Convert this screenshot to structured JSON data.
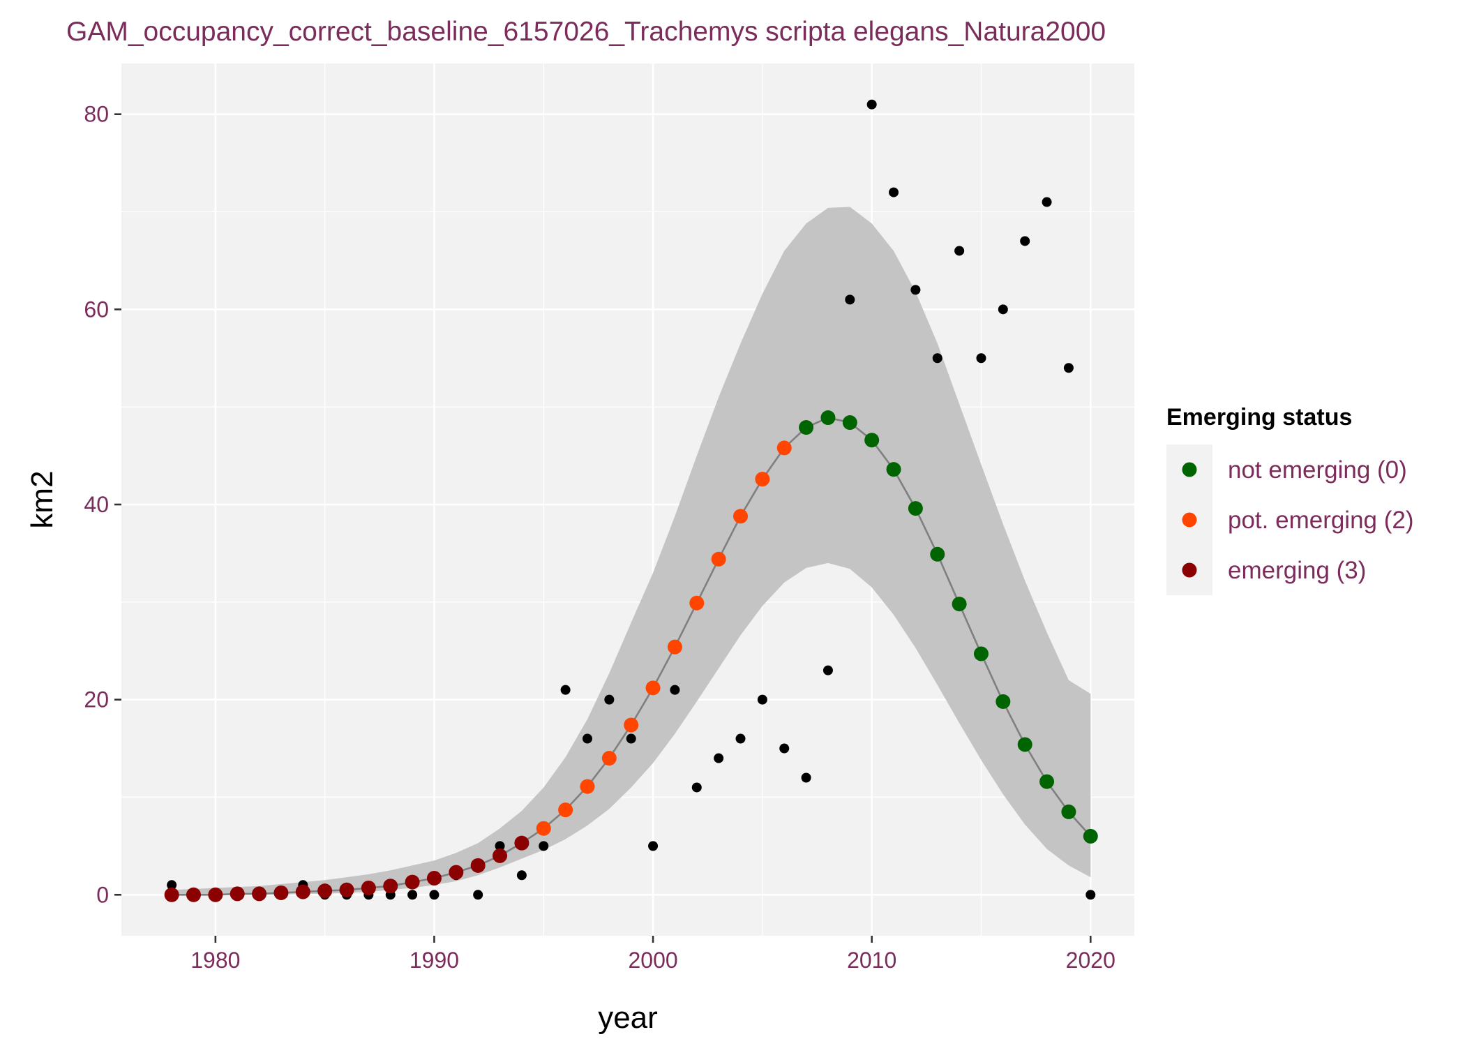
{
  "chart_data": {
    "type": "scatter",
    "title": "GAM_occupancy_correct_baseline_6157026_Trachemys scripta elegans_Natura2000",
    "xlabel": "year",
    "ylabel": "km2",
    "xlim": [
      1975.7,
      2022.0
    ],
    "ylim": [
      -4.2,
      85.2
    ],
    "x_ticks": [
      "1980",
      "1990",
      "2000",
      "2010",
      "2020"
    ],
    "y_ticks": [
      "0",
      "20",
      "40",
      "60",
      "80"
    ],
    "grid": true,
    "legend": {
      "title": "Emerging status",
      "position": "right",
      "entries": [
        {
          "label": "not emerging (0)",
          "color": "#006400"
        },
        {
          "label": "pot. emerging (2)",
          "color": "#ff4500"
        },
        {
          "label": "emerging (3)",
          "color": "#8b0000"
        }
      ]
    },
    "colors": {
      "panel": "#f2f2f2",
      "grid": "#ffffff",
      "ribbon": "#c4c4c4",
      "fit_line": "#7f7f7f",
      "observed": "#000000",
      "status_0": "#006400",
      "status_2": "#ff4500",
      "status_3": "#8b0000"
    },
    "observed": {
      "name": "observed",
      "x": [
        1978,
        1979,
        1980,
        1981,
        1982,
        1983,
        1984,
        1985,
        1986,
        1987,
        1988,
        1989,
        1990,
        1991,
        1992,
        1993,
        1994,
        1995,
        1996,
        1997,
        1998,
        1999,
        2000,
        2001,
        2002,
        2003,
        2004,
        2005,
        2006,
        2007,
        2008,
        2009,
        2010,
        2011,
        2012,
        2013,
        2014,
        2015,
        2016,
        2017,
        2018,
        2019,
        2020
      ],
      "y": [
        1,
        0,
        0,
        0,
        0,
        0,
        1,
        0,
        0,
        0,
        0,
        0,
        0,
        2,
        0,
        5,
        2,
        5,
        21,
        16,
        20,
        16,
        5,
        21,
        11,
        14,
        16,
        20,
        15,
        12,
        23,
        61,
        81,
        72,
        62,
        55,
        66,
        55,
        60,
        67,
        71,
        54,
        0
      ]
    },
    "fitted": {
      "x": [
        1978,
        1979,
        1980,
        1981,
        1982,
        1983,
        1984,
        1985,
        1986,
        1987,
        1988,
        1989,
        1990,
        1991,
        1992,
        1993,
        1994,
        1995,
        1996,
        1997,
        1998,
        1999,
        2000,
        2001,
        2002,
        2003,
        2004,
        2005,
        2006,
        2007,
        2008,
        2009,
        2010,
        2011,
        2012,
        2013,
        2014,
        2015,
        2016,
        2017,
        2018,
        2019,
        2020
      ],
      "y": [
        0.0,
        0.0,
        0.0,
        0.1,
        0.1,
        0.2,
        0.3,
        0.4,
        0.5,
        0.7,
        0.9,
        1.3,
        1.7,
        2.3,
        3.0,
        4.0,
        5.3,
        6.8,
        8.7,
        11.1,
        14.0,
        17.4,
        21.2,
        25.4,
        29.9,
        34.4,
        38.8,
        42.6,
        45.8,
        47.9,
        48.9,
        48.4,
        46.6,
        43.6,
        39.6,
        34.9,
        29.8,
        24.7,
        19.8,
        15.4,
        11.6,
        8.5,
        6.0
      ],
      "status": [
        3,
        3,
        3,
        3,
        3,
        3,
        3,
        3,
        3,
        3,
        3,
        3,
        3,
        3,
        3,
        3,
        3,
        2,
        2,
        2,
        2,
        2,
        2,
        2,
        2,
        2,
        2,
        2,
        2,
        0,
        0,
        0,
        0,
        0,
        0,
        0,
        0,
        0,
        0,
        0,
        0,
        0,
        0
      ],
      "lower": [
        0.0,
        0.0,
        0.0,
        0.0,
        0.0,
        0.0,
        0.1,
        0.1,
        0.2,
        0.3,
        0.5,
        0.7,
        1.0,
        1.4,
        2.0,
        2.8,
        3.7,
        4.6,
        5.7,
        7.1,
        8.8,
        11.0,
        13.5,
        16.5,
        19.8,
        23.2,
        26.6,
        29.6,
        32.0,
        33.5,
        34.0,
        33.4,
        31.5,
        28.7,
        25.3,
        21.5,
        17.6,
        13.8,
        10.3,
        7.2,
        4.7,
        3.0,
        1.8
      ],
      "upper": [
        0.5,
        0.6,
        0.7,
        0.8,
        0.9,
        1.1,
        1.3,
        1.5,
        1.8,
        2.1,
        2.5,
        3.0,
        3.5,
        4.3,
        5.3,
        6.8,
        8.6,
        11.0,
        14.1,
        18.0,
        22.7,
        27.9,
        33.0,
        38.8,
        45.0,
        51.0,
        56.5,
        61.6,
        66.0,
        68.8,
        70.4,
        70.5,
        68.8,
        66.0,
        61.8,
        56.5,
        50.3,
        44.1,
        38.0,
        32.2,
        26.9,
        22.0,
        20.6
      ]
    }
  }
}
